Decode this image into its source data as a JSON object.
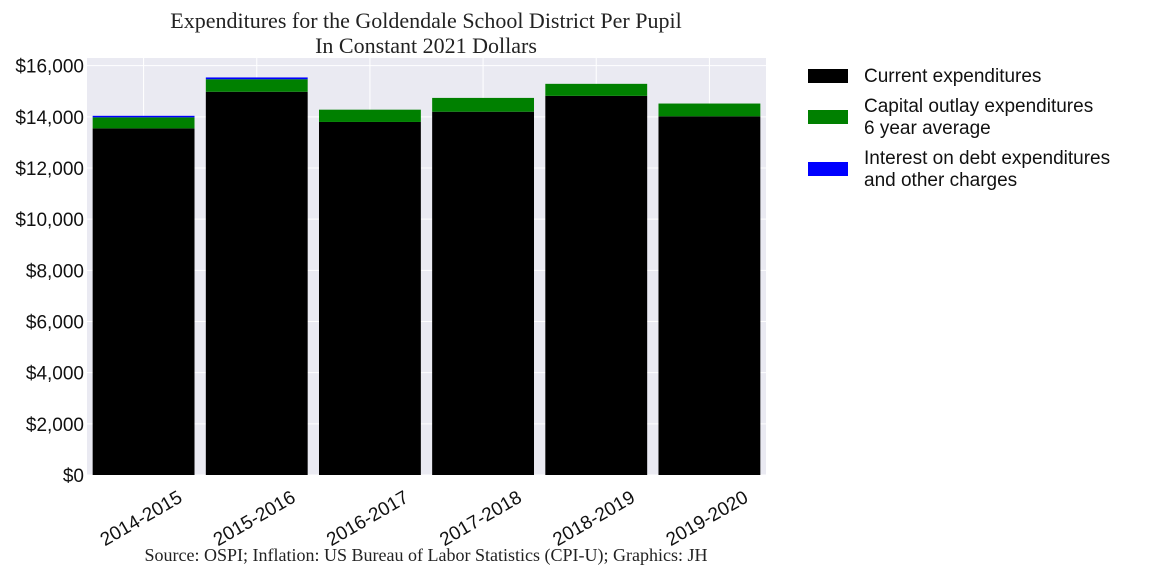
{
  "chart_data": {
    "type": "bar",
    "stacked": true,
    "title": "Expenditures for the Goldendale School District Per Pupil",
    "subtitle": "In Constant 2021 Dollars",
    "source": "Source: OSPI; Inflation: US Bureau of Labor Statistics (CPI-U); Graphics: JH",
    "categories": [
      "2014-2015",
      "2015-2016",
      "2016-2017",
      "2017-2018",
      "2018-2019",
      "2019-2020"
    ],
    "series": [
      {
        "name": "Current expenditures",
        "color": "#000000",
        "values": [
          13550,
          14980,
          13800,
          14200,
          14820,
          14020
        ]
      },
      {
        "name": "Capital outlay expenditures\n6 year average",
        "color": "#008000",
        "values": [
          430,
          490,
          480,
          540,
          470,
          500
        ]
      },
      {
        "name": "Interest on debt expenditures\nand other charges",
        "color": "#0000ff",
        "values": [
          60,
          70,
          0,
          0,
          0,
          0
        ]
      }
    ],
    "ylim": [
      0,
      16300
    ],
    "yticks": [
      0,
      2000,
      4000,
      6000,
      8000,
      10000,
      12000,
      14000,
      16000
    ],
    "ytick_labels": [
      "$0",
      "$2,000",
      "$4,000",
      "$6,000",
      "$8,000",
      "$10,000",
      "$12,000",
      "$14,000",
      "$16,000"
    ],
    "xlabel": "",
    "ylabel": "",
    "grid": true,
    "legend_position": "outside-right",
    "background_color": "#eaeaf2"
  }
}
